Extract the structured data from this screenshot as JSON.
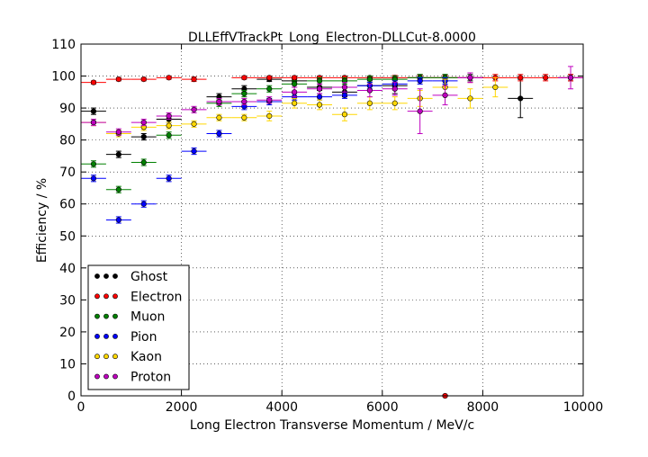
{
  "chart_data": {
    "type": "scatter",
    "title": "DLLEffVTrackPt_Long_Electron-DLLCut-8.0000",
    "xlabel": "Long Electron Transverse Momentum / MeV/c",
    "ylabel": "Efficiency / %",
    "xlim": [
      0,
      10000
    ],
    "ylim": [
      0,
      110
    ],
    "xticks": [
      0,
      2000,
      4000,
      6000,
      8000,
      10000
    ],
    "yticks": [
      0,
      10,
      20,
      30,
      40,
      50,
      60,
      70,
      80,
      90,
      100,
      110
    ],
    "grid": true,
    "legend_position": "lower-left",
    "series": [
      {
        "name": "Ghost",
        "color": "#000000",
        "points": [
          [
            250,
            89.0,
            1.0
          ],
          [
            750,
            75.5,
            1.0
          ],
          [
            1250,
            81.0,
            1.0
          ],
          [
            1750,
            86.5,
            1.0
          ],
          [
            2750,
            93.5,
            1.0
          ],
          [
            3250,
            96.0,
            1.0
          ],
          [
            3750,
            99.0,
            0.7
          ],
          [
            4250,
            98.5,
            0.7
          ],
          [
            4750,
            96.5,
            1.0
          ],
          [
            5250,
            95.0,
            1.5
          ],
          [
            5750,
            97.0,
            1.5
          ],
          [
            6250,
            97.0,
            2.5
          ],
          [
            6750,
            99.5,
            1.0
          ],
          [
            7250,
            99.5,
            1.0
          ],
          [
            7750,
            99.5,
            1.0
          ],
          [
            8750,
            93.0,
            6.0
          ],
          [
            9750,
            99.5,
            1.0
          ]
        ]
      },
      {
        "name": "Electron",
        "color": "#ff0000",
        "points": [
          [
            250,
            98.0,
            0.5
          ],
          [
            750,
            99.0,
            0.5
          ],
          [
            1250,
            99.0,
            0.5
          ],
          [
            1750,
            99.5,
            0.5
          ],
          [
            2250,
            99.0,
            0.7
          ],
          [
            3250,
            99.5,
            0.5
          ],
          [
            3750,
            99.5,
            0.5
          ],
          [
            4250,
            99.5,
            0.5
          ],
          [
            4750,
            99.5,
            0.5
          ],
          [
            5250,
            99.5,
            0.5
          ],
          [
            5750,
            99.5,
            0.5
          ],
          [
            6250,
            99.5,
            0.7
          ],
          [
            6750,
            99.5,
            0.7
          ],
          [
            7250,
            99.5,
            0.7
          ],
          [
            7750,
            99.5,
            1.5
          ],
          [
            8250,
            99.5,
            1.0
          ],
          [
            8750,
            99.5,
            1.0
          ],
          [
            9250,
            99.5,
            1.0
          ],
          [
            9750,
            99.5,
            1.0
          ],
          [
            7250,
            0.0,
            0.3
          ]
        ]
      },
      {
        "name": "Muon",
        "color": "#008000",
        "points": [
          [
            250,
            72.5,
            1.0
          ],
          [
            750,
            64.5,
            1.0
          ],
          [
            1250,
            73.0,
            1.0
          ],
          [
            1750,
            81.5,
            1.0
          ],
          [
            2750,
            91.5,
            1.0
          ],
          [
            3250,
            94.5,
            1.0
          ],
          [
            3750,
            96.0,
            1.0
          ],
          [
            4250,
            97.5,
            1.0
          ],
          [
            4750,
            98.5,
            1.0
          ],
          [
            5250,
            98.5,
            1.0
          ],
          [
            5750,
            99.0,
            1.0
          ],
          [
            6250,
            99.0,
            1.0
          ],
          [
            6750,
            99.5,
            1.0
          ],
          [
            7250,
            99.5,
            1.0
          ]
        ]
      },
      {
        "name": "Pion",
        "color": "#0000ff",
        "points": [
          [
            250,
            68.0,
            1.0
          ],
          [
            750,
            55.0,
            1.0
          ],
          [
            1250,
            60.0,
            1.0
          ],
          [
            1750,
            68.0,
            1.0
          ],
          [
            2250,
            76.5,
            1.0
          ],
          [
            2750,
            82.0,
            1.0
          ],
          [
            3250,
            90.5,
            1.0
          ],
          [
            3750,
            92.0,
            1.0
          ],
          [
            4250,
            93.5,
            1.0
          ],
          [
            4750,
            93.5,
            1.0
          ],
          [
            5250,
            94.0,
            1.0
          ],
          [
            5750,
            97.0,
            1.0
          ],
          [
            6250,
            97.5,
            1.0
          ],
          [
            6750,
            98.5,
            1.0
          ],
          [
            7250,
            98.5,
            1.0
          ]
        ]
      },
      {
        "name": "Kaon",
        "color": "#ffd700",
        "points": [
          [
            250,
            85.5,
            1.0
          ],
          [
            750,
            82.0,
            1.0
          ],
          [
            1250,
            84.0,
            1.0
          ],
          [
            1750,
            84.5,
            1.0
          ],
          [
            2250,
            85.0,
            1.0
          ],
          [
            2750,
            87.0,
            1.0
          ],
          [
            3250,
            87.0,
            1.0
          ],
          [
            3750,
            87.5,
            1.5
          ],
          [
            4250,
            91.5,
            1.5
          ],
          [
            4750,
            91.0,
            1.5
          ],
          [
            5250,
            88.0,
            2.0
          ],
          [
            5750,
            91.5,
            2.0
          ],
          [
            6250,
            91.5,
            2.0
          ],
          [
            6750,
            93.0,
            2.5
          ],
          [
            7250,
            96.5,
            2.5
          ],
          [
            7750,
            93.0,
            3.0
          ],
          [
            8250,
            96.5,
            3.0
          ]
        ]
      },
      {
        "name": "Proton",
        "color": "#bf00bf",
        "points": [
          [
            250,
            85.5,
            1.0
          ],
          [
            750,
            82.5,
            1.0
          ],
          [
            1250,
            85.5,
            1.0
          ],
          [
            1750,
            87.5,
            1.0
          ],
          [
            2250,
            89.5,
            1.0
          ],
          [
            2750,
            92.0,
            1.0
          ],
          [
            3250,
            92.0,
            1.0
          ],
          [
            3750,
            92.5,
            1.0
          ],
          [
            4250,
            95.0,
            1.5
          ],
          [
            4750,
            96.0,
            1.5
          ],
          [
            5250,
            96.5,
            1.5
          ],
          [
            5750,
            95.5,
            2.0
          ],
          [
            6250,
            96.0,
            2.0
          ],
          [
            6750,
            89.0,
            7.0
          ],
          [
            7250,
            94.0,
            3.0
          ],
          [
            7750,
            99.5,
            1.5
          ],
          [
            9750,
            99.5,
            3.5
          ]
        ]
      }
    ]
  }
}
